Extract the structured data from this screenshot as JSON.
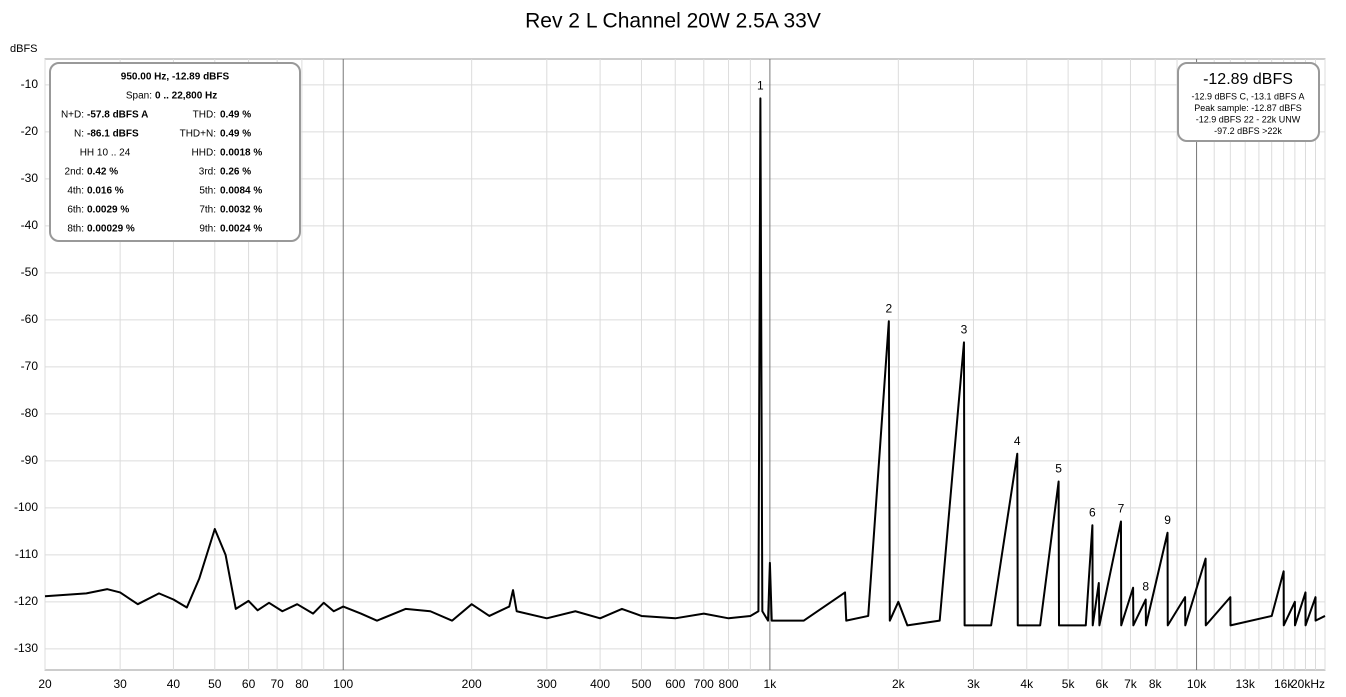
{
  "chart_data": {
    "type": "line",
    "title": "Rev 2 L Channel 20W 2.5A 33V",
    "y_label": "dBFS",
    "log_x": true,
    "grid": true,
    "color": "#000000",
    "xlim": [
      20,
      20000
    ],
    "ylim": [
      -134.5,
      -4.5
    ],
    "xticks": [
      20,
      30,
      40,
      50,
      60,
      70,
      80,
      100,
      200,
      300,
      400,
      500,
      600,
      700,
      800,
      {
        "value": 1000,
        "label": "1k"
      },
      {
        "value": 2000,
        "label": "2k"
      },
      {
        "value": 3000,
        "label": "3k"
      },
      {
        "value": 4000,
        "label": "4k"
      },
      {
        "value": 5000,
        "label": "5k"
      },
      {
        "value": 6000,
        "label": "6k"
      },
      {
        "value": 7000,
        "label": "7k"
      },
      {
        "value": 8000,
        "label": "8k"
      },
      {
        "value": 10000,
        "label": "10k"
      },
      {
        "value": 13000,
        "label": "13k"
      },
      {
        "value": 16000,
        "label": "16k"
      },
      {
        "value": 20000,
        "label": "20kHz"
      }
    ],
    "x_minor_ticks": [
      90,
      900,
      9000,
      11000,
      12000,
      14000,
      15000,
      17000,
      18000,
      19000
    ],
    "yticks": [
      -10,
      -20,
      -30,
      -40,
      -50,
      -60,
      -70,
      -80,
      -90,
      -100,
      -110,
      -120,
      -130
    ],
    "x": [
      20,
      25,
      28,
      30,
      33,
      37,
      40,
      43,
      46,
      50,
      53,
      56,
      60,
      63,
      67,
      72,
      78,
      85,
      90,
      95,
      100,
      110,
      120,
      140,
      160,
      180,
      200,
      220,
      245,
      250,
      255,
      300,
      350,
      400,
      450,
      500,
      600,
      700,
      800,
      900,
      940,
      950,
      960,
      990,
      1000,
      1010,
      1200,
      1500,
      1510,
      1700,
      1900,
      1910,
      2000,
      2100,
      2500,
      2850,
      2860,
      3300,
      3800,
      3810,
      4300,
      4750,
      4760,
      5500,
      5700,
      5710,
      5900,
      5920,
      6650,
      6660,
      7100,
      7110,
      7600,
      7610,
      8550,
      8560,
      9400,
      9410,
      10500,
      10510,
      12000,
      12010,
      15000,
      16000,
      16010,
      17000,
      17010,
      18000,
      18010,
      19000,
      19010,
      20000
    ],
    "values": [
      -118.8,
      -118.2,
      -117.3,
      -118,
      -120.5,
      -118.2,
      -119.5,
      -121.2,
      -115,
      -104.5,
      -110,
      -121.5,
      -119.8,
      -121.8,
      -120.2,
      -122,
      -120.5,
      -122.5,
      -120.2,
      -122,
      -121,
      -122.5,
      -124,
      -121.5,
      -122,
      -124,
      -120.5,
      -123,
      -121,
      -117.5,
      -122,
      -123.5,
      -122,
      -123.5,
      -121.5,
      -123,
      -123.5,
      -122.5,
      -123.5,
      -123,
      -122,
      -12.89,
      -122,
      -124,
      -111.7,
      -124,
      -124,
      -118,
      -124,
      -123,
      -60.3,
      -124,
      -120,
      -125,
      -124,
      -64.8,
      -125,
      -125,
      -88.5,
      -125,
      -125,
      -94.4,
      -125,
      -125,
      -103.7,
      -125,
      -116,
      -125,
      -102.9,
      -125,
      -117,
      -125,
      -119.5,
      -125,
      -105.3,
      -125,
      -119,
      -125,
      -110.8,
      -125,
      -119,
      -125,
      -123,
      -113.5,
      -125,
      -120,
      -125,
      -118,
      -125,
      -119,
      -124,
      -123
    ],
    "harmonic_labels": [
      {
        "text": "1",
        "x": 950,
        "y": -12.89
      },
      {
        "text": "2",
        "x": 1900,
        "y": -60.3
      },
      {
        "text": "3",
        "x": 2850,
        "y": -64.8
      },
      {
        "text": "4",
        "x": 3800,
        "y": -88.5
      },
      {
        "text": "5",
        "x": 4750,
        "y": -94.4
      },
      {
        "text": "6",
        "x": 5700,
        "y": -103.7
      },
      {
        "text": "7",
        "x": 6650,
        "y": -102.9
      },
      {
        "text": "8",
        "x": 7600,
        "y": -119.5
      },
      {
        "text": "9",
        "x": 8550,
        "y": -105.3
      }
    ],
    "info_panel": {
      "header": "950.00 Hz, -12.89 dBFS",
      "span_label": "Span:",
      "span_value": "0 .. 22,800 Hz",
      "rows": [
        {
          "left_label": "N+D:",
          "left_value": "-57.8 dBFS A",
          "right_label": "THD:",
          "right_value": "0.49 %"
        },
        {
          "left_label": "N:",
          "left_value": "-86.1 dBFS",
          "right_label": "THD+N:",
          "right_value": "0.49 %"
        },
        {
          "left_label": "HH 10 .. 24",
          "right_label": "HHD:",
          "right_value": "0.0018 %"
        },
        {
          "left_label": "2nd:",
          "left_value": "0.42 %",
          "right_label": "3rd:",
          "right_value": "0.26 %"
        },
        {
          "left_label": "4th:",
          "left_value": "0.016 %",
          "right_label": "5th:",
          "right_value": "0.0084 %"
        },
        {
          "left_label": "6th:",
          "left_value": "0.0029 %",
          "right_label": "7th:",
          "right_value": "0.0032 %"
        },
        {
          "left_label": "8th:",
          "left_value": "0.00029 %",
          "right_label": "9th:",
          "right_value": "0.0024 %"
        }
      ]
    },
    "level_panel": {
      "level": "-12.89 dBFS",
      "lines": [
        "-12.9 dBFS C, -13.1 dBFS A",
        "Peak sample: -12.87 dBFS",
        "-12.9 dBFS 22 - 22k UNW",
        "-97.2 dBFS >22k"
      ]
    }
  }
}
